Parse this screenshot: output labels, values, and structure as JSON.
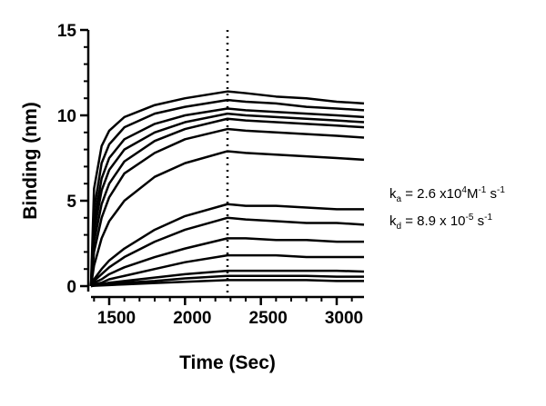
{
  "chart_data": {
    "type": "line",
    "xlabel": "Time (Sec)",
    "ylabel": "Binding (nm)",
    "x": [
      1380,
      1400,
      1450,
      1500,
      1600,
      1800,
      2000,
      2280,
      2400,
      2600,
      2800,
      3000,
      3180
    ],
    "series": [
      {
        "color": "#000000",
        "values": [
          0,
          5.7,
          8.2,
          9.1,
          9.9,
          10.6,
          11.0,
          11.4,
          11.3,
          11.1,
          11.0,
          10.8,
          10.7
        ]
      },
      {
        "color": "#000000",
        "values": [
          0,
          4.5,
          7.2,
          8.3,
          9.3,
          10.1,
          10.5,
          10.9,
          10.8,
          10.7,
          10.5,
          10.4,
          10.3
        ]
      },
      {
        "color": "#000000",
        "values": [
          0,
          3.8,
          6.3,
          7.5,
          8.6,
          9.5,
          10.0,
          10.4,
          10.3,
          10.2,
          10.1,
          10.0,
          9.9
        ]
      },
      {
        "color": "#000000",
        "values": [
          0,
          3.2,
          5.6,
          6.8,
          8.0,
          9.0,
          9.6,
          10.1,
          10.0,
          9.9,
          9.8,
          9.7,
          9.6
        ]
      },
      {
        "color": "#000000",
        "values": [
          0,
          2.6,
          4.8,
          6.0,
          7.3,
          8.5,
          9.2,
          9.8,
          9.7,
          9.6,
          9.5,
          9.4,
          9.3
        ]
      },
      {
        "color": "#000000",
        "values": [
          0,
          2.0,
          4.0,
          5.2,
          6.6,
          7.8,
          8.6,
          9.2,
          9.1,
          9.0,
          8.9,
          8.8,
          8.7
        ]
      },
      {
        "color": "#000000",
        "values": [
          0,
          1.2,
          2.8,
          3.8,
          5.0,
          6.4,
          7.2,
          7.9,
          7.8,
          7.7,
          7.6,
          7.5,
          7.4
        ]
      },
      {
        "color": "#000000",
        "values": [
          0,
          0.4,
          1.0,
          1.5,
          2.2,
          3.3,
          4.1,
          4.8,
          4.7,
          4.7,
          4.6,
          4.5,
          4.5
        ]
      },
      {
        "color": "#000000",
        "values": [
          0,
          0.3,
          0.7,
          1.1,
          1.7,
          2.6,
          3.3,
          4.0,
          3.9,
          3.8,
          3.7,
          3.7,
          3.6
        ]
      },
      {
        "color": "#000000",
        "values": [
          0,
          0.2,
          0.4,
          0.7,
          1.1,
          1.7,
          2.2,
          2.8,
          2.8,
          2.7,
          2.7,
          2.6,
          2.6
        ]
      },
      {
        "color": "#000000",
        "values": [
          0,
          0.1,
          0.2,
          0.4,
          0.6,
          1.0,
          1.4,
          1.8,
          1.8,
          1.8,
          1.7,
          1.7,
          1.7
        ]
      },
      {
        "color": "#000000",
        "values": [
          0,
          0.05,
          0.1,
          0.2,
          0.3,
          0.5,
          0.7,
          0.9,
          0.9,
          0.9,
          0.9,
          0.9,
          0.85
        ]
      },
      {
        "color": "#000000",
        "values": [
          0,
          0.03,
          0.07,
          0.1,
          0.2,
          0.3,
          0.45,
          0.6,
          0.6,
          0.6,
          0.6,
          0.55,
          0.55
        ]
      },
      {
        "color": "#000000",
        "values": [
          0,
          0.02,
          0.04,
          0.06,
          0.1,
          0.18,
          0.25,
          0.35,
          0.35,
          0.35,
          0.35,
          0.3,
          0.3
        ]
      }
    ],
    "xlim": [
      1380,
      3180
    ],
    "xticks": [
      1500,
      2000,
      2500,
      3000
    ],
    "xminorticks": [
      1400,
      1600,
      1700,
      1800,
      1900,
      2100,
      2200,
      2300,
      2400,
      2600,
      2700,
      2800,
      2900,
      3100
    ],
    "ylim": [
      0,
      15
    ],
    "yticks": [
      0,
      5,
      10,
      15
    ],
    "yminorticks": [
      1,
      2,
      3,
      4,
      6,
      7,
      8,
      9,
      11,
      12,
      13,
      14
    ],
    "vline": 2280,
    "annotations": [
      [
        "k",
        "a",
        " = 2.6 x10",
        "4",
        "M",
        "-1",
        " s",
        "-1"
      ],
      [
        "k",
        "d",
        " = 8.9 x 10",
        "-5",
        " s",
        "-1"
      ]
    ]
  }
}
